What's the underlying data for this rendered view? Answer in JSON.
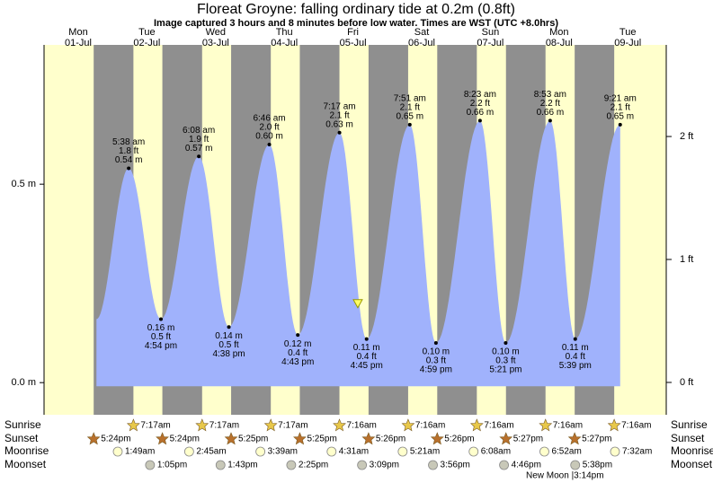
{
  "chart_data": {
    "type": "area",
    "title": "Floreat Groyne: falling  ordinary tide at 0.2m (0.8ft)",
    "subtitle": "Image captured 3 hours and 8 minutes before low water. Times are WST (UTC +8.0hrs)",
    "days": [
      "Mon",
      "Tue",
      "Wed",
      "Thu",
      "Fri",
      "Sat",
      "Sun",
      "Mon",
      "Tue"
    ],
    "categories": [
      "01-Jul",
      "02-Jul",
      "03-Jul",
      "04-Jul",
      "05-Jul",
      "06-Jul",
      "07-Jul",
      "08-Jul",
      "09-Jul"
    ],
    "color": "#a0b2fc",
    "ylim": [
      -0.081,
      0.851
    ],
    "yticks": [
      {
        "value": 0,
        "label": "0.0 m"
      },
      {
        "value": 0.5,
        "label": "0.5 m"
      }
    ],
    "y2lim": [
      -0.263,
      2.745
    ],
    "y2ticks": [
      {
        "value": 0,
        "label": "0 ft"
      },
      {
        "value": 1,
        "label": "1 ft"
      },
      {
        "value": 2,
        "label": "2 ft"
      }
    ],
    "extremes": [
      {
        "date": "02-Jul",
        "time": "5:38 am",
        "value": 0.54,
        "value_label": "0.54 m",
        "ft": 1.8,
        "ft_label": "1.8 ft"
      },
      {
        "date": "02-Jul",
        "time": "4:54 pm",
        "value": 0.16,
        "value_label": "0.16 m",
        "ft": 0.5,
        "ft_label": "0.5 ft"
      },
      {
        "date": "03-Jul",
        "time": "6:08 am",
        "value": 0.57,
        "value_label": "0.57 m",
        "ft": 1.9,
        "ft_label": "1.9 ft"
      },
      {
        "date": "03-Jul",
        "time": "4:38 pm",
        "value": 0.14,
        "value_label": "0.14 m",
        "ft": 0.5,
        "ft_label": "0.5 ft"
      },
      {
        "date": "04-Jul",
        "time": "6:46 am",
        "value": 0.6,
        "value_label": "0.60 m",
        "ft": 2.0,
        "ft_label": "2.0 ft"
      },
      {
        "date": "04-Jul",
        "time": "4:43 pm",
        "value": 0.12,
        "value_label": "0.12 m",
        "ft": 0.4,
        "ft_label": "0.4 ft"
      },
      {
        "date": "05-Jul",
        "time": "7:17 am",
        "value": 0.63,
        "value_label": "0.63 m",
        "ft": 2.1,
        "ft_label": "2.1 ft"
      },
      {
        "date": "05-Jul",
        "time": "4:45 pm",
        "value": 0.11,
        "value_label": "0.11 m",
        "ft": 0.4,
        "ft_label": "0.4 ft"
      },
      {
        "date": "06-Jul",
        "time": "7:51 am",
        "value": 0.65,
        "value_label": "0.65 m",
        "ft": 2.1,
        "ft_label": "2.1 ft"
      },
      {
        "date": "06-Jul",
        "time": "4:59 pm",
        "value": 0.1,
        "value_label": "0.10 m",
        "ft": 0.3,
        "ft_label": "0.3 ft"
      },
      {
        "date": "07-Jul",
        "time": "8:23 am",
        "value": 0.66,
        "value_label": "0.66 m",
        "ft": 2.2,
        "ft_label": "2.2 ft"
      },
      {
        "date": "07-Jul",
        "time": "5:21 pm",
        "value": 0.1,
        "value_label": "0.10 m",
        "ft": 0.3,
        "ft_label": "0.3 ft"
      },
      {
        "date": "08-Jul",
        "time": "8:53 am",
        "value": 0.66,
        "value_label": "0.66 m",
        "ft": 2.2,
        "ft_label": "2.2 ft"
      },
      {
        "date": "08-Jul",
        "time": "5:39 pm",
        "value": 0.11,
        "value_label": "0.11 m",
        "ft": 0.4,
        "ft_label": "0.4 ft"
      },
      {
        "date": "09-Jul",
        "time": "9:21 am",
        "value": 0.65,
        "value_label": "0.65 m",
        "ft": 2.1,
        "ft_label": "2.1 ft"
      }
    ],
    "now": {
      "day": 4.57,
      "value": 0.2
    },
    "rows": [
      {
        "label": "Sunrise",
        "icon": "sunrise",
        "items": [
          {
            "date": "02-Jul",
            "time": "7:17am"
          },
          {
            "date": "03-Jul",
            "time": "7:17am"
          },
          {
            "date": "04-Jul",
            "time": "7:17am"
          },
          {
            "date": "05-Jul",
            "time": "7:16am"
          },
          {
            "date": "06-Jul",
            "time": "7:16am"
          },
          {
            "date": "07-Jul",
            "time": "7:16am"
          },
          {
            "date": "08-Jul",
            "time": "7:16am"
          },
          {
            "date": "09-Jul",
            "time": "7:16am"
          }
        ]
      },
      {
        "label": "Sunset",
        "icon": "sunset",
        "items": [
          {
            "date": "01-Jul",
            "time": "5:24pm"
          },
          {
            "date": "02-Jul",
            "time": "5:24pm"
          },
          {
            "date": "03-Jul",
            "time": "5:25pm"
          },
          {
            "date": "04-Jul",
            "time": "5:25pm"
          },
          {
            "date": "05-Jul",
            "time": "5:26pm"
          },
          {
            "date": "06-Jul",
            "time": "5:26pm"
          },
          {
            "date": "07-Jul",
            "time": "5:27pm"
          },
          {
            "date": "08-Jul",
            "time": "5:27pm"
          }
        ]
      },
      {
        "label": "Moonrise",
        "icon": "moonrise",
        "items": [
          {
            "date": "02-Jul",
            "time": "1:49am"
          },
          {
            "date": "03-Jul",
            "time": "2:45am"
          },
          {
            "date": "04-Jul",
            "time": "3:39am"
          },
          {
            "date": "05-Jul",
            "time": "4:31am"
          },
          {
            "date": "06-Jul",
            "time": "5:21am"
          },
          {
            "date": "07-Jul",
            "time": "6:08am"
          },
          {
            "date": "08-Jul",
            "time": "6:52am"
          },
          {
            "date": "09-Jul",
            "time": "7:32am"
          }
        ]
      },
      {
        "label": "Moonset",
        "icon": "moonset",
        "items": [
          {
            "date": "02-Jul",
            "time": "1:05pm"
          },
          {
            "date": "03-Jul",
            "time": "1:43pm"
          },
          {
            "date": "04-Jul",
            "time": "2:25pm"
          },
          {
            "date": "05-Jul",
            "time": "3:09pm"
          },
          {
            "date": "06-Jul",
            "time": "3:56pm"
          },
          {
            "date": "07-Jul",
            "time": "4:46pm"
          },
          {
            "date": "08-Jul",
            "time": "5:38pm"
          }
        ]
      }
    ],
    "note": "New Moon |3:14pm"
  }
}
